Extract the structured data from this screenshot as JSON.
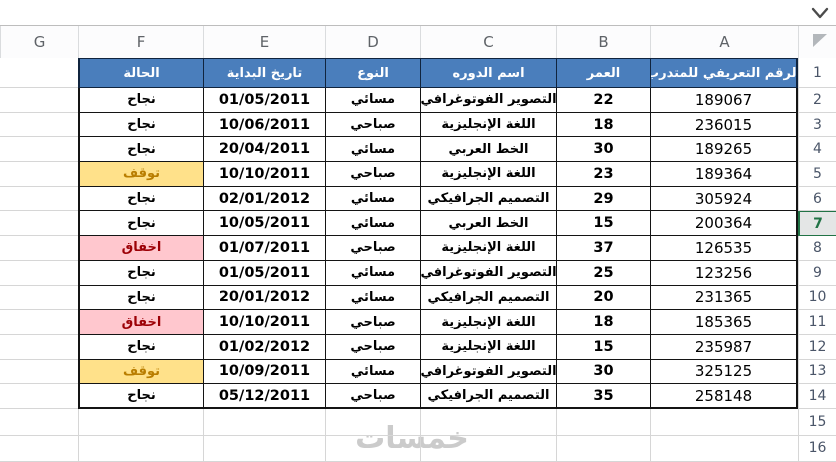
{
  "column_headers": [
    "A",
    "B",
    "C",
    "D",
    "E",
    "F",
    "G"
  ],
  "first_row_number": "1",
  "trailing_row_numbers": [
    "15",
    "16"
  ],
  "active_row": 7,
  "table": {
    "headers": {
      "id": "الرقم التعريفي للمتدرب",
      "age": "العمر",
      "course": "اسم الدوره",
      "type": "النوع",
      "date": "تاريخ البداية",
      "status": "الحالة"
    },
    "rows": [
      {
        "row": "2",
        "id": "189067",
        "age": "22",
        "course": "التصوير الفوتوغرافي",
        "type": "مسائي",
        "date": "01/05/2011",
        "status": "نجاح",
        "status_variant": "success"
      },
      {
        "row": "3",
        "id": "236015",
        "age": "18",
        "course": "اللغة الإنجليزية",
        "type": "صباحي",
        "date": "10/06/2011",
        "status": "نجاح",
        "status_variant": "success"
      },
      {
        "row": "4",
        "id": "189265",
        "age": "30",
        "course": "الخط العربي",
        "type": "مسائي",
        "date": "20/04/2011",
        "status": "نجاح",
        "status_variant": "success"
      },
      {
        "row": "5",
        "id": "189364",
        "age": "23",
        "course": "اللغة الإنجليزية",
        "type": "صباحي",
        "date": "10/10/2011",
        "status": "توقف",
        "status_variant": "stopped"
      },
      {
        "row": "6",
        "id": "305924",
        "age": "29",
        "course": "التصميم الجرافيكي",
        "type": "مسائي",
        "date": "02/01/2012",
        "status": "نجاح",
        "status_variant": "success"
      },
      {
        "row": "7",
        "id": "200364",
        "age": "15",
        "course": "الخط العربي",
        "type": "مسائي",
        "date": "10/05/2011",
        "status": "نجاح",
        "status_variant": "success"
      },
      {
        "row": "8",
        "id": "126535",
        "age": "37",
        "course": "اللغة الإنجليزية",
        "type": "صباحي",
        "date": "01/07/2011",
        "status": "اخفاق",
        "status_variant": "failed"
      },
      {
        "row": "9",
        "id": "123256",
        "age": "25",
        "course": "التصوير الفوتوغرافي",
        "type": "مسائي",
        "date": "01/05/2011",
        "status": "نجاح",
        "status_variant": "success"
      },
      {
        "row": "10",
        "id": "231365",
        "age": "20",
        "course": "التصميم الجرافيكي",
        "type": "مسائي",
        "date": "20/01/2012",
        "status": "نجاح",
        "status_variant": "success"
      },
      {
        "row": "11",
        "id": "185365",
        "age": "18",
        "course": "اللغة الإنجليزية",
        "type": "صباحي",
        "date": "10/10/2011",
        "status": "اخفاق",
        "status_variant": "failed"
      },
      {
        "row": "12",
        "id": "235987",
        "age": "15",
        "course": "اللغة الإنجليزية",
        "type": "صباحي",
        "date": "01/02/2012",
        "status": "نجاح",
        "status_variant": "success"
      },
      {
        "row": "13",
        "id": "325125",
        "age": "30",
        "course": "التصوير الفوتوغرافي",
        "type": "مسائي",
        "date": "10/09/2011",
        "status": "توقف",
        "status_variant": "stopped"
      },
      {
        "row": "14",
        "id": "258148",
        "age": "35",
        "course": "التصميم الجرافيكي",
        "type": "صباحي",
        "date": "05/12/2011",
        "status": "نجاح",
        "status_variant": "success"
      }
    ]
  },
  "watermark": "خمسات",
  "icons": {
    "chevron-down-icon": "⌄",
    "select-all-triangle-icon": "◥"
  },
  "colors": {
    "header_fill": "#4a7ebc",
    "header_text": "#ffffff",
    "stopped_fill": "#ffe18a",
    "stopped_text": "#b97d00",
    "failed_fill": "#ffc7ce",
    "failed_text": "#9c0006",
    "active_row_accent": "#217346",
    "watermark_color": "#cbcbcb"
  }
}
